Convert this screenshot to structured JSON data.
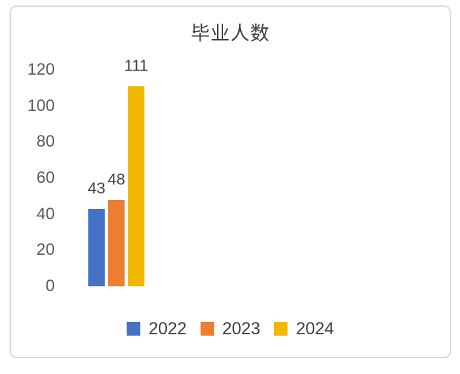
{
  "page": {
    "background_color": "#FFFFFF",
    "frame_border_color": "#D9D9D9"
  },
  "chart_data": {
    "type": "bar",
    "title": "毕业人数",
    "categories": [
      "2022",
      "2023",
      "2024"
    ],
    "series": [
      {
        "name": "2022",
        "value": 43,
        "color": "#4472C4"
      },
      {
        "name": "2023",
        "value": 48,
        "color": "#ED7D31"
      },
      {
        "name": "2024",
        "value": 111,
        "color": "#F0B800"
      }
    ],
    "xlabel": "",
    "ylabel": "",
    "ylim": [
      0,
      120
    ],
    "yticks": [
      0,
      20,
      40,
      60,
      80,
      100,
      120
    ],
    "grid": false,
    "axis_line": false,
    "data_labels_visible": true,
    "legend_position": "bottom"
  }
}
